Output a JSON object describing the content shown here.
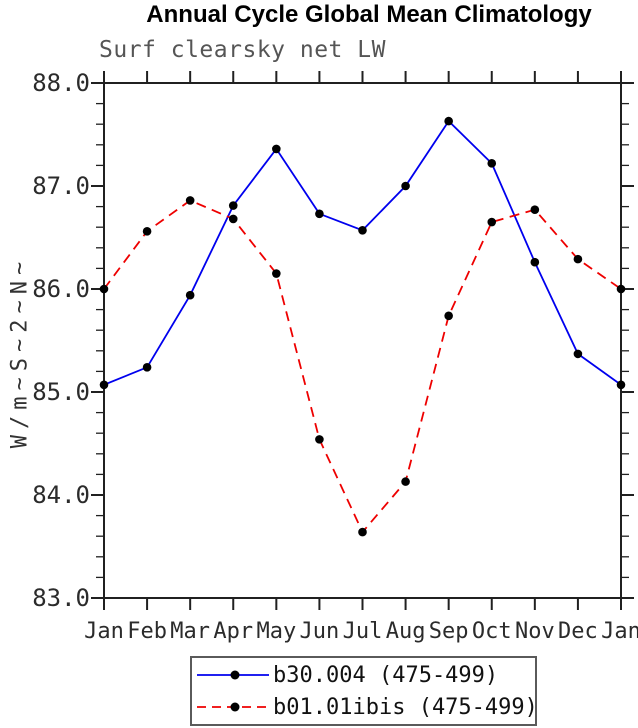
{
  "chart_data": {
    "type": "line",
    "title": "Annual Cycle Global Mean Climatology",
    "subtitle": "Surf clearsky net LW",
    "xlabel": "",
    "ylabel": "W/m~S~2~N~",
    "categories": [
      "Jan",
      "Feb",
      "Mar",
      "Apr",
      "May",
      "Jun",
      "Jul",
      "Aug",
      "Sep",
      "Oct",
      "Nov",
      "Dec",
      "Jan"
    ],
    "ylim": [
      83.0,
      88.0
    ],
    "y_tick_labels": [
      "88.0",
      "87.0",
      "86.0",
      "85.0",
      "84.0",
      "83.0"
    ],
    "y_major_tick_interval": 1.0,
    "y_minor_tick_interval": 0.2,
    "grid": false,
    "legend_position": "bottom",
    "axis_color": "#202020",
    "marker_shape": "filled-circle",
    "series": [
      {
        "name": "b30.004 (475-499)",
        "color": "#0000ee",
        "line_style": "solid",
        "marker_color": "#000000",
        "values": [
          85.07,
          85.24,
          85.94,
          86.81,
          87.36,
          86.73,
          86.57,
          87.0,
          87.63,
          87.22,
          86.26,
          85.37,
          85.07
        ]
      },
      {
        "name": "b01.01ibis (475-499)",
        "color": "#ee0000",
        "line_style": "dashed",
        "marker_color": "#000000",
        "values": [
          86.0,
          86.56,
          86.86,
          86.68,
          86.15,
          84.54,
          83.64,
          84.13,
          85.74,
          86.65,
          86.77,
          86.29,
          86.0
        ]
      }
    ]
  }
}
